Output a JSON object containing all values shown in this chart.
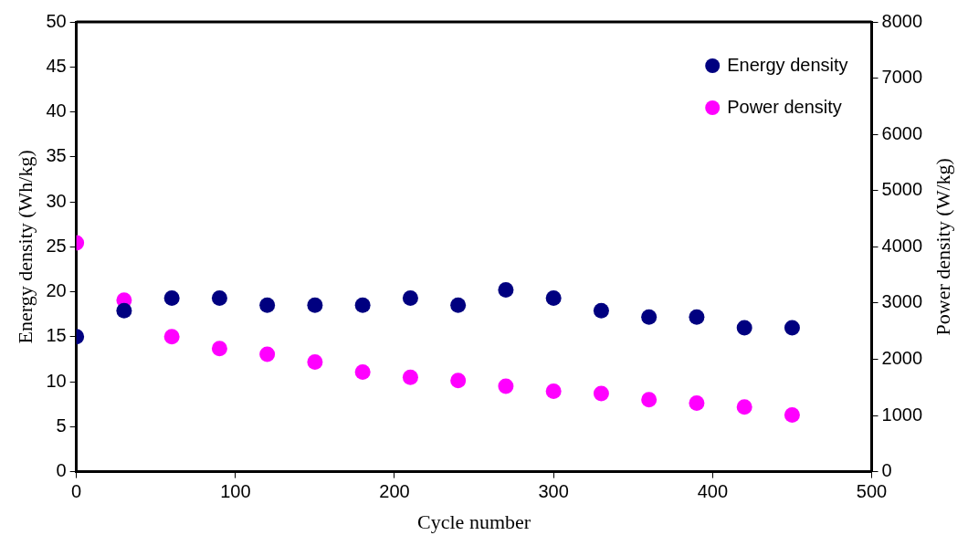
{
  "chart_data": {
    "type": "scatter",
    "xlabel": "Cycle number",
    "ylabel": "Energy density (Wh/kg)",
    "y2label": "Power density (W/kg)",
    "x": [
      0,
      30,
      60,
      90,
      120,
      150,
      180,
      210,
      240,
      270,
      300,
      330,
      360,
      390,
      420,
      450
    ],
    "series": [
      {
        "name": "Energy density",
        "color": "#000080",
        "values": [
          15.0,
          17.9,
          19.3,
          19.3,
          18.5,
          18.5,
          18.5,
          19.3,
          18.5,
          20.2,
          19.3,
          17.9,
          17.2,
          17.2,
          16.0,
          16.0
        ]
      },
      {
        "name": "Power density",
        "color": "#ff00ff",
        "axis": "y2",
        "values": [
          4070,
          3050,
          2400,
          2190,
          2090,
          1950,
          1770,
          1680,
          1620,
          1520,
          1430,
          1390,
          1280,
          1220,
          1150,
          1010
        ]
      }
    ],
    "xlim": [
      0,
      500
    ],
    "xticks": [
      0,
      100,
      200,
      300,
      400,
      500
    ],
    "ylim": [
      0,
      50
    ],
    "yticks": [
      0,
      5,
      10,
      15,
      20,
      25,
      30,
      35,
      40,
      45,
      50
    ],
    "y2lim": [
      0,
      8000
    ],
    "y2ticks": [
      0,
      1000,
      2000,
      3000,
      4000,
      5000,
      6000,
      7000,
      8000
    ],
    "grid": false,
    "legend": "top right",
    "marker": "circle"
  }
}
